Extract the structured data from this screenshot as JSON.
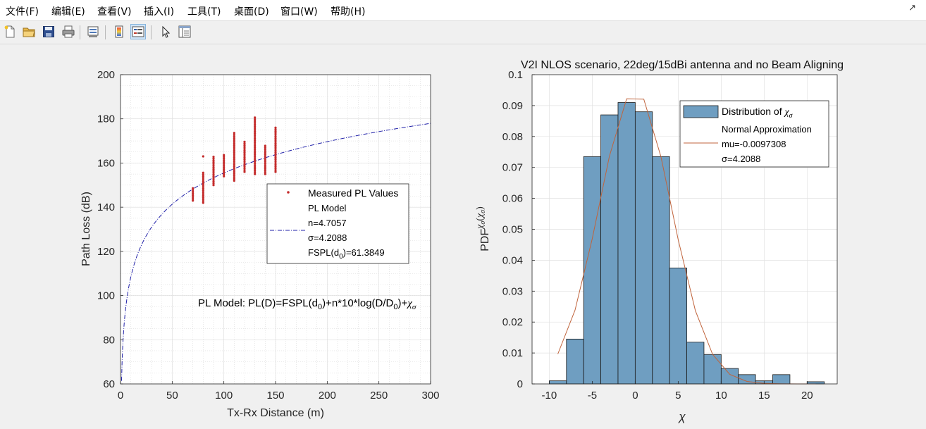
{
  "menu": [
    "文件(F)",
    "编辑(E)",
    "查看(V)",
    "插入(I)",
    "工具(T)",
    "桌面(D)",
    "窗口(W)",
    "帮助(H)"
  ],
  "toolbar_icons": [
    "new-file-icon",
    "open-folder-icon",
    "save-icon",
    "print-icon",
    "print-preview-icon",
    "colorbar-icon",
    "legend-icon",
    "pointer-icon",
    "property-inspector-icon"
  ],
  "chart_data": [
    {
      "type": "scatter",
      "title": "",
      "xlabel": "Tx-Rx Distance (m)",
      "ylabel": "Path Loss (dB)",
      "xlim": [
        0,
        300
      ],
      "ylim": [
        60,
        200
      ],
      "xticks": [
        0,
        50,
        100,
        150,
        200,
        250,
        300
      ],
      "yticks": [
        60,
        80,
        100,
        120,
        140,
        160,
        180,
        200
      ],
      "grid": "minor",
      "legend_position": "center-right",
      "legend": {
        "measured": "Measured PL Values",
        "model_lines": [
          "PL Model",
          "n=4.7057",
          "σ=4.2088"
        ],
        "fspl_prefix": "FSPL(d",
        "fspl_sub": "0",
        "fspl_suffix": ")=61.3849"
      },
      "annotation": {
        "part1": "PL Model: PL(D)=FSPL(d",
        "sub1": "0",
        "part2": ")+n*10*log(D/D",
        "sub2": "0",
        "part3": ")+",
        "chi": "χ",
        "sigma": "σ"
      },
      "model": {
        "fspl_d0": 61.3849,
        "n": 4.7057,
        "d0": 1
      },
      "measured": [
        {
          "x": 70,
          "min": 143,
          "max": 149
        },
        {
          "x": 80,
          "min": 142,
          "max": 156
        },
        {
          "x": 80,
          "min": 163,
          "max": 163
        },
        {
          "x": 90,
          "min": 150,
          "max": 163
        },
        {
          "x": 100,
          "min": 154,
          "max": 164
        },
        {
          "x": 110,
          "min": 152,
          "max": 174
        },
        {
          "x": 120,
          "min": 156,
          "max": 170
        },
        {
          "x": 130,
          "min": 155,
          "max": 181
        },
        {
          "x": 140,
          "min": 155,
          "max": 168
        },
        {
          "x": 150,
          "min": 156,
          "max": 176
        }
      ]
    },
    {
      "type": "bar",
      "title": "V2I NLOS scenario, 22deg/15dBi antenna and no Beam Aligning",
      "xlabel_chi": "χ",
      "xlabel_sub": "σ",
      "ylabel": {
        "prefix": "PDF",
        "sub_chi": "χ",
        "sub_sigma": "σ",
        "arg_chi": "χ",
        "arg_sigma": "σ"
      },
      "xlim": [
        -12,
        23.5
      ],
      "ylim": [
        0,
        0.1
      ],
      "xticks": [
        -10,
        -5,
        0,
        5,
        10,
        15,
        20
      ],
      "yticks": [
        0,
        0.01,
        0.02,
        0.03,
        0.04,
        0.05,
        0.06,
        0.07,
        0.08,
        0.09,
        0.1
      ],
      "grid": true,
      "legend_position": "top-right",
      "legend": {
        "dist_prefix": "Distribution of ",
        "dist_chi": "χ",
        "dist_sigma": "σ",
        "normal_lines": [
          "Normal Approximation",
          "mu=-0.0097308",
          "σ=4.2088"
        ]
      },
      "bin_edges": [
        -10,
        -8,
        -6,
        -4,
        -2,
        0,
        2,
        4,
        6,
        8,
        10,
        12,
        14,
        16,
        18,
        20,
        22
      ],
      "values": [
        0.001,
        0.0145,
        0.0735,
        0.087,
        0.091,
        0.088,
        0.0735,
        0.0375,
        0.0135,
        0.0095,
        0.005,
        0.003,
        0.001,
        0.003,
        0,
        0.0007
      ],
      "normal": {
        "mu": -0.0097308,
        "sigma": 4.2088
      },
      "bar_color": "#6f9ec1",
      "line_color": "#c0643c"
    }
  ]
}
